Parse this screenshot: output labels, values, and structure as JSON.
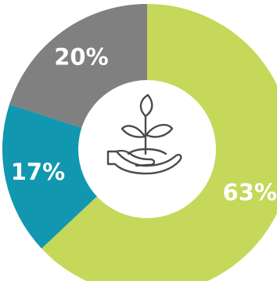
{
  "chart_data": {
    "type": "pie",
    "variant": "donut",
    "start_angle_deg": 0,
    "direction": "clockwise",
    "slices": [
      {
        "label": "63%",
        "value": 63,
        "color": "#c5d85a"
      },
      {
        "label": "17%",
        "value": 17,
        "color": "#1297b0"
      },
      {
        "label": "20%",
        "value": 20,
        "color": "#808080"
      }
    ],
    "center_icon": "hand-holding-plant-icon",
    "legend": "none"
  }
}
